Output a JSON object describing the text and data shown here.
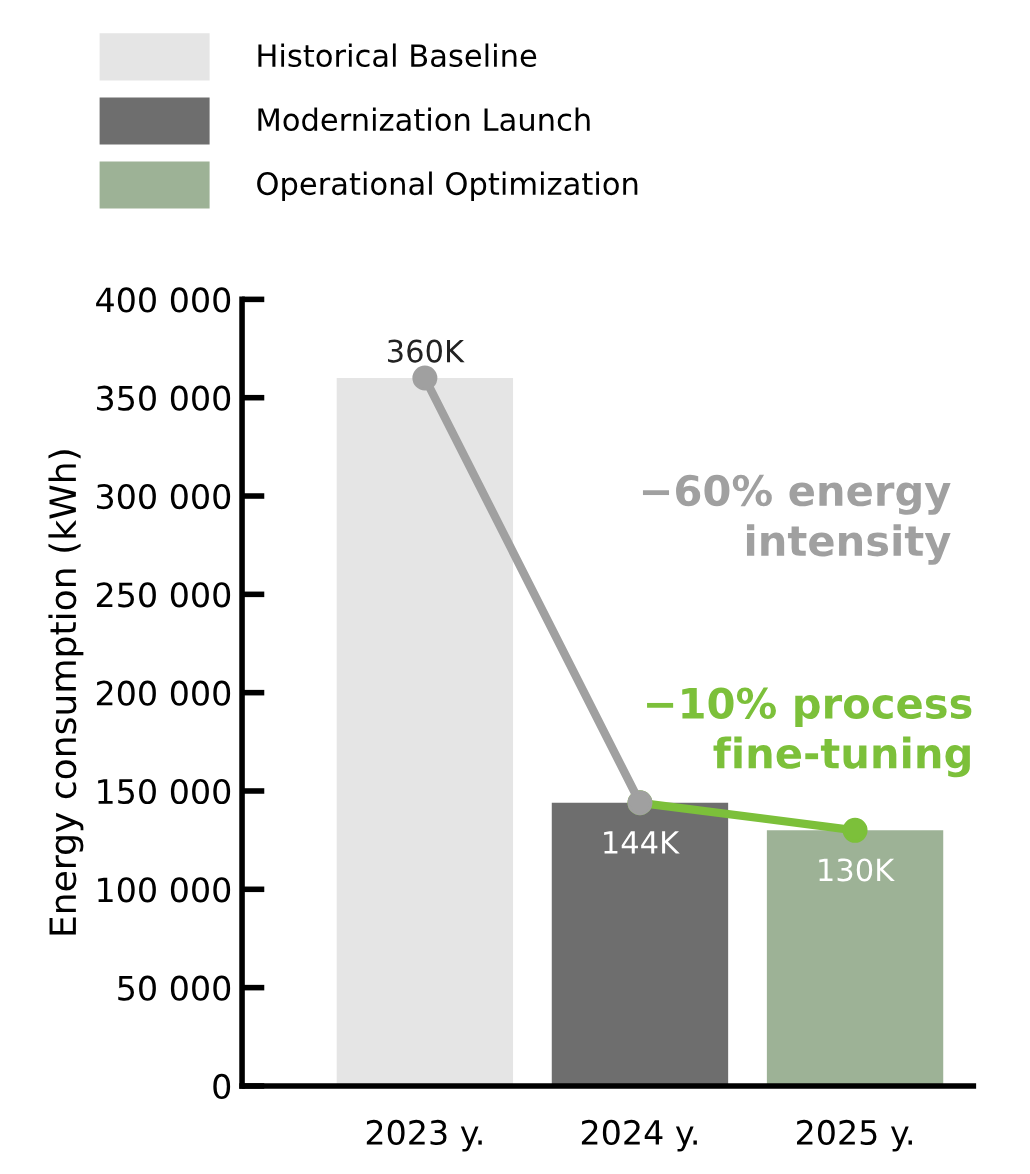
{
  "chart_data": {
    "type": "bar",
    "ylabel": "Energy consumption (kWh)",
    "categories": [
      "2023 y.",
      "2024 y.",
      "2025 y."
    ],
    "series": [
      {
        "name": "Historical Baseline",
        "color": "#e5e5e5",
        "values": [
          360000,
          null,
          null
        ],
        "value_labels": [
          "360K",
          null,
          null
        ]
      },
      {
        "name": "Modernization Launch",
        "color": "#6e6e6e",
        "values": [
          null,
          144000,
          null
        ],
        "value_labels": [
          null,
          "144K",
          null
        ]
      },
      {
        "name": "Operational Optimization",
        "color": "#9db296",
        "values": [
          null,
          null,
          130000
        ],
        "value_labels": [
          null,
          null,
          "130K"
        ]
      },
      {
        "type": "line",
        "color": "#a0a0a0",
        "values": [
          360000,
          144000,
          null
        ],
        "marker": "circle"
      },
      {
        "type": "line",
        "color": "#7cc03a",
        "values": [
          null,
          144000,
          130000
        ],
        "marker": "circle"
      }
    ],
    "annotations": [
      "−60% energy intensity",
      "−10% process fine-tuning"
    ],
    "ylim": [
      0,
      400000
    ],
    "yticks": [
      0,
      {
        "value": 50000,
        "label": "50 000"
      },
      {
        "value": 100000,
        "label": "100 000"
      },
      {
        "value": 150000,
        "label": "150 000"
      },
      {
        "value": 200000,
        "label": "200 000"
      },
      {
        "value": 250000,
        "label": "250 000"
      },
      {
        "value": 300000,
        "label": "300 000"
      },
      {
        "value": 350000,
        "label": "350 000"
      },
      {
        "value": 400000,
        "label": "400 000"
      }
    ],
    "grid": false,
    "legend": "top left"
  }
}
